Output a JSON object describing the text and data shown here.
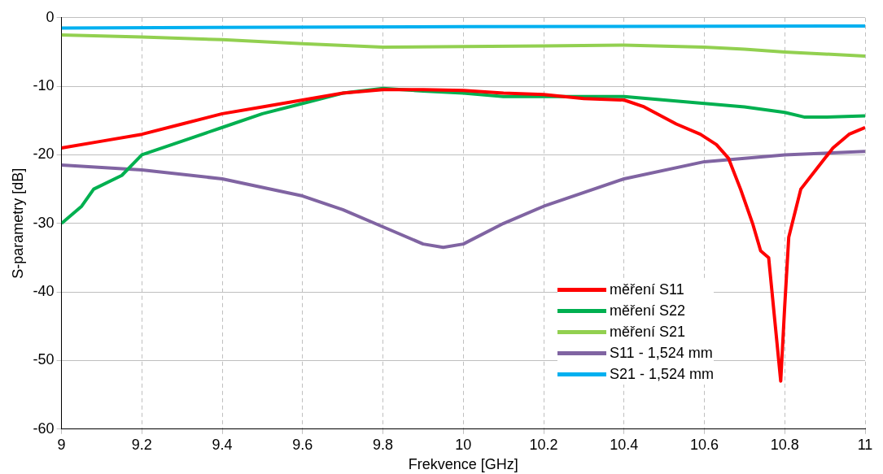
{
  "chart_data": {
    "type": "line",
    "xlabel": "Frekvence [GHz]",
    "ylabel": "S-parametry [dB]",
    "xlim": [
      9,
      11
    ],
    "xticks": [
      9,
      9.2,
      9.4,
      9.6,
      9.8,
      10,
      10.2,
      10.4,
      10.6,
      10.8,
      11
    ],
    "ylim": [
      -60,
      0
    ],
    "yticks": [
      -60,
      -50,
      -40,
      -30,
      -20,
      -10,
      0
    ],
    "grid": true,
    "legend": "bottom right",
    "marker": "none",
    "line_style": "solid",
    "series": [
      {
        "name": "měření S11",
        "color": "#ff0000",
        "x": [
          9,
          9.1,
          9.2,
          9.3,
          9.4,
          9.5,
          9.6,
          9.7,
          9.8,
          9.9,
          10,
          10.1,
          10.2,
          10.3,
          10.4,
          10.45,
          10.53,
          10.59,
          10.63,
          10.66,
          10.69,
          10.72,
          10.74,
          10.76,
          10.775,
          10.79,
          10.8,
          10.81,
          10.84,
          10.88,
          10.92,
          10.96,
          11
        ],
        "values": [
          -19,
          -18,
          -17,
          -15.5,
          -14,
          -13,
          -12,
          -11,
          -10.5,
          -10.5,
          -10.6,
          -11,
          -11.2,
          -11.8,
          -12,
          -13,
          -15.5,
          -17,
          -18.5,
          -20.5,
          -25,
          -30,
          -34,
          -35,
          -44,
          -53,
          -42,
          -32,
          -25,
          -22,
          -19,
          -17,
          -16
        ]
      },
      {
        "name": "měření S22",
        "color": "#00b050",
        "x": [
          9,
          9.05,
          9.08,
          9.15,
          9.2,
          9.3,
          9.4,
          9.5,
          9.6,
          9.7,
          9.8,
          9.9,
          10,
          10.1,
          10.2,
          10.3,
          10.4,
          10.5,
          10.6,
          10.7,
          10.8,
          10.85,
          10.9,
          11
        ],
        "values": [
          -30,
          -27.5,
          -25,
          -23,
          -20,
          -18,
          -16,
          -14,
          -12.5,
          -11,
          -10.3,
          -10.7,
          -11,
          -11.5,
          -11.5,
          -11.5,
          -11.5,
          -12,
          -12.5,
          -13,
          -13.8,
          -14.5,
          -14.5,
          -14.3
        ]
      },
      {
        "name": "měření S21",
        "color": "#92d050",
        "x": [
          9,
          9.2,
          9.4,
          9.6,
          9.8,
          10,
          10.2,
          10.4,
          10.6,
          10.7,
          10.8,
          10.9,
          11
        ],
        "values": [
          -2.5,
          -2.8,
          -3.2,
          -3.8,
          -4.3,
          -4.2,
          -4.1,
          -4,
          -4.3,
          -4.6,
          -5,
          -5.3,
          -5.6
        ]
      },
      {
        "name": "S11 - 1,524 mm",
        "color": "#8064a2",
        "x": [
          9,
          9.2,
          9.4,
          9.6,
          9.7,
          9.8,
          9.9,
          9.95,
          10,
          10.1,
          10.2,
          10.4,
          10.6,
          10.8,
          11
        ],
        "values": [
          -21.5,
          -22.2,
          -23.5,
          -26,
          -28,
          -30.5,
          -33,
          -33.5,
          -33,
          -30,
          -27.5,
          -23.5,
          -21,
          -20,
          -19.5
        ]
      },
      {
        "name": "S21 - 1,524 mm",
        "color": "#00b0f0",
        "x": [
          9,
          10,
          11
        ],
        "values": [
          -1.5,
          -1.3,
          -1.2
        ]
      }
    ]
  }
}
